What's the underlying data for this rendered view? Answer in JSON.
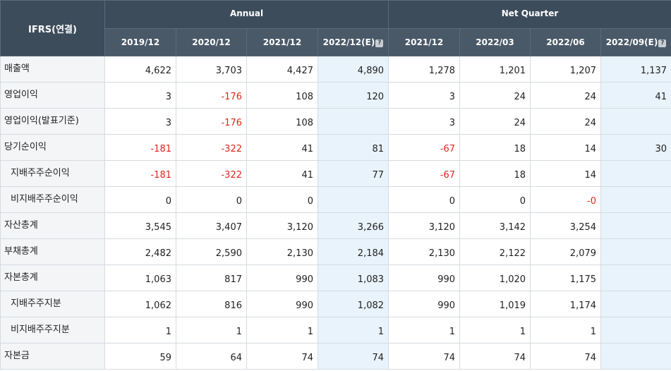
{
  "header": {
    "corner": "IFRS(연결)",
    "annual": "Annual",
    "quarter": "Net Quarter",
    "help_icon": "?",
    "columns": [
      "2019/12",
      "2020/12",
      "2021/12",
      "2022/12(E)",
      "2021/12",
      "2022/03",
      "2022/06",
      "2022/09(E)"
    ]
  },
  "estimate_columns": [
    3,
    7
  ],
  "rows": [
    {
      "label": "매출액",
      "indent": false,
      "values": [
        "4,622",
        "3,703",
        "4,427",
        "4,890",
        "1,278",
        "1,201",
        "1,207",
        "1,137"
      ]
    },
    {
      "label": "영업이익",
      "indent": false,
      "values": [
        "3",
        "-176",
        "108",
        "120",
        "3",
        "24",
        "24",
        "41"
      ]
    },
    {
      "label": "영업이익(발표기준)",
      "indent": false,
      "values": [
        "3",
        "-176",
        "108",
        "",
        "3",
        "24",
        "24",
        ""
      ]
    },
    {
      "label": "당기순이익",
      "indent": false,
      "values": [
        "-181",
        "-322",
        "41",
        "81",
        "-67",
        "18",
        "14",
        "30"
      ]
    },
    {
      "label": "지배주주순이익",
      "indent": true,
      "values": [
        "-181",
        "-322",
        "41",
        "77",
        "-67",
        "18",
        "14",
        ""
      ]
    },
    {
      "label": "비지배주주순이익",
      "indent": true,
      "values": [
        "0",
        "0",
        "0",
        "",
        "0",
        "0",
        "-0",
        ""
      ]
    },
    {
      "label": "자산총계",
      "indent": false,
      "values": [
        "3,545",
        "3,407",
        "3,120",
        "3,266",
        "3,120",
        "3,142",
        "3,254",
        ""
      ]
    },
    {
      "label": "부채총계",
      "indent": false,
      "values": [
        "2,482",
        "2,590",
        "2,130",
        "2,184",
        "2,130",
        "2,122",
        "2,079",
        ""
      ]
    },
    {
      "label": "자본총계",
      "indent": false,
      "values": [
        "1,063",
        "817",
        "990",
        "1,083",
        "990",
        "1,020",
        "1,175",
        ""
      ]
    },
    {
      "label": "지배주주지분",
      "indent": true,
      "values": [
        "1,062",
        "816",
        "990",
        "1,082",
        "990",
        "1,019",
        "1,174",
        ""
      ]
    },
    {
      "label": "비지배주주지분",
      "indent": true,
      "values": [
        "1",
        "1",
        "1",
        "1",
        "1",
        "1",
        "1",
        ""
      ]
    },
    {
      "label": "자본금",
      "indent": false,
      "values": [
        "59",
        "64",
        "74",
        "74",
        "74",
        "74",
        "74",
        ""
      ]
    }
  ],
  "colors": {
    "negative": "#e2231a",
    "estimate_bg": "#e8f3fb",
    "header_bg": "#3d4c5b"
  }
}
